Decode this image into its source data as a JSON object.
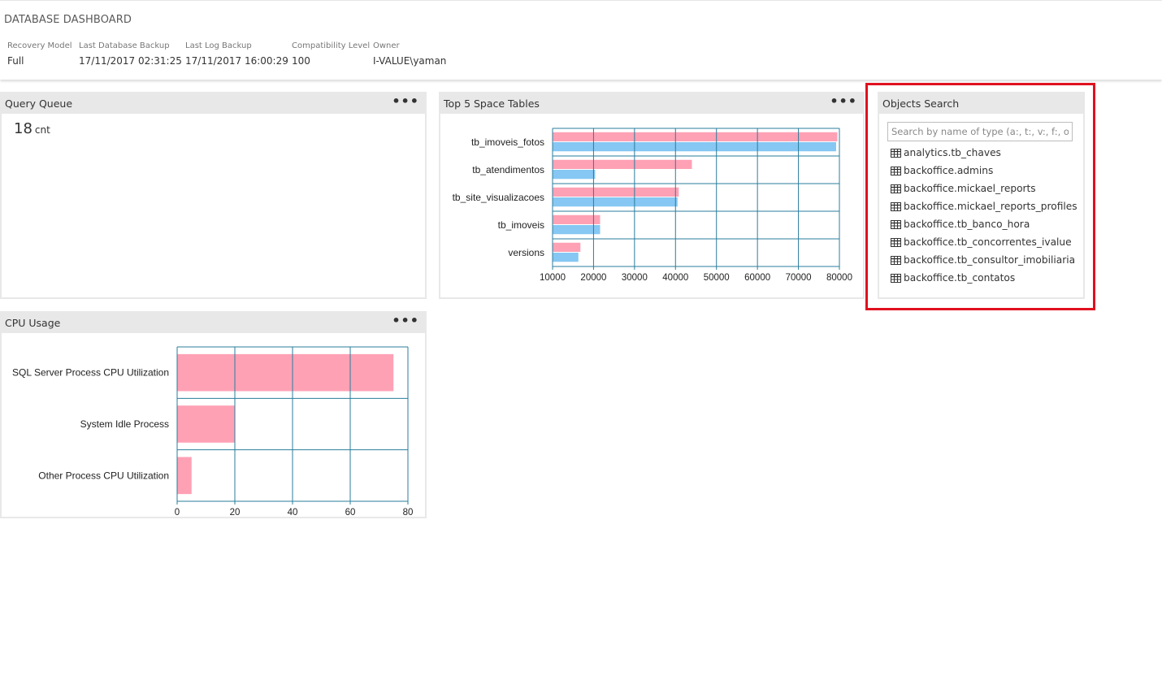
{
  "header": {
    "title": "DATABASE DASHBOARD",
    "properties": [
      {
        "label": "Recovery Model",
        "value": "Full"
      },
      {
        "label": "Last Database Backup",
        "value": "17/11/2017 02:31:25"
      },
      {
        "label": "Last Log Backup",
        "value": "17/11/2017 16:00:29"
      },
      {
        "label": "Compatibility Level",
        "value": "100"
      },
      {
        "label": "Owner",
        "value": "I-VALUE\\yaman"
      }
    ]
  },
  "query_queue": {
    "title": "Query Queue",
    "menu": "•••",
    "value": "18",
    "unit": "cnt"
  },
  "top_tables": {
    "title": "Top 5 Space Tables",
    "menu": "•••"
  },
  "cpu_usage": {
    "title": "CPU Usage",
    "menu": "•••"
  },
  "objects_search": {
    "title": "Objects Search",
    "placeholder": "Search by name of type (a:, t:, v:, f:, o...",
    "items": [
      "analytics.tb_chaves",
      "backoffice.admins",
      "backoffice.mickael_reports",
      "backoffice.mickael_reports_profiles",
      "backoffice.tb_banco_hora",
      "backoffice.tb_concorrentes_ivalue",
      "backoffice.tb_consultor_imobiliaria",
      "backoffice.tb_contatos"
    ]
  },
  "colors": {
    "series_pink": "#ffa1b5",
    "series_blue": "#86c7f3",
    "grid": "#2a7d9c",
    "highlight": "#e0111f"
  },
  "chart_data": [
    {
      "type": "bar",
      "orientation": "horizontal",
      "categories": [
        "tb_imoveis_fotos",
        "tb_atendimentos",
        "tb_site_visualizacoes",
        "tb_imoveis",
        "versions"
      ],
      "series": [
        {
          "values": [
            79500,
            44000,
            40800,
            21600,
            16800
          ]
        },
        {
          "values": [
            79200,
            20400,
            40500,
            21600,
            16300
          ]
        }
      ],
      "xlim": [
        10000,
        80000
      ],
      "xticks": [
        10000,
        20000,
        30000,
        40000,
        50000,
        60000,
        70000,
        80000
      ],
      "grid": true
    },
    {
      "type": "bar",
      "orientation": "horizontal",
      "categories": [
        "SQL Server Process CPU Utilization",
        "System Idle Process",
        "Other Process CPU Utilization"
      ],
      "series": [
        {
          "values": [
            75,
            20,
            5
          ]
        }
      ],
      "xlim": [
        0,
        80
      ],
      "xticks": [
        0,
        20,
        40,
        60,
        80
      ],
      "grid": true
    }
  ]
}
